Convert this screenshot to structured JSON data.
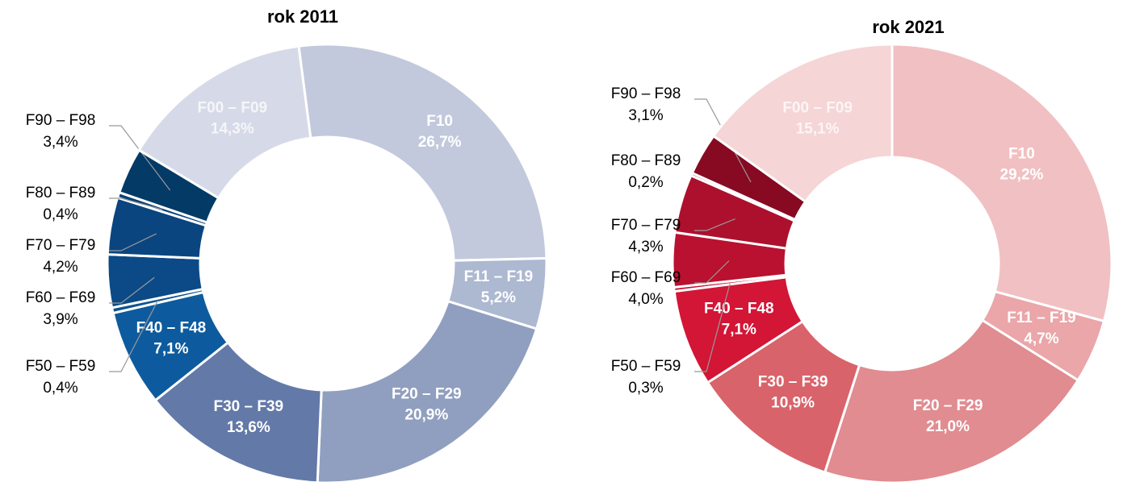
{
  "chart_data": [
    {
      "type": "pie",
      "title": "rok 2011",
      "categories": [
        "F10",
        "F11 – F19",
        "F20 – F29",
        "F30 – F39",
        "F40 – F48",
        "F50 – F59",
        "F60 – F69",
        "F70 – F79",
        "F80 – F89",
        "F90 – F98",
        "F00 – F09"
      ],
      "values": [
        26.7,
        5.2,
        20.9,
        13.6,
        7.1,
        0.4,
        3.9,
        4.2,
        0.4,
        3.4,
        14.3
      ],
      "value_labels": [
        "26,7%",
        "5,2%",
        "20,9%",
        "13,6%",
        "7,1%",
        "0,4%",
        "3,9%",
        "4,2%",
        "0,4%",
        "3,4%",
        "14,3%"
      ],
      "colors": [
        "#c2c9dc",
        "#adb8d1",
        "#909fbf",
        "#6379a8",
        "#0d5b9e",
        "#0e5391",
        "#0b4a86",
        "#0a4580",
        "#08417a",
        "#043a66",
        "#d6dae8"
      ]
    },
    {
      "type": "pie",
      "title": "rok 2021",
      "categories": [
        "F10",
        "F11 – F19",
        "F20 – F29",
        "F30 – F39",
        "F40 – F48",
        "F50 – F59",
        "F60 – F69",
        "F70 – F79",
        "F80 – F89",
        "F90 – F98",
        "F00 – F09"
      ],
      "values": [
        29.2,
        4.7,
        21.0,
        10.9,
        7.1,
        0.3,
        4.0,
        4.3,
        0.2,
        3.1,
        15.1
      ],
      "value_labels": [
        "29,2%",
        "4,7%",
        "21,0%",
        "10,9%",
        "7,1%",
        "0,3%",
        "4,0%",
        "4,3%",
        "0,2%",
        "3,1%",
        "15,1%"
      ],
      "colors": [
        "#f1c0c2",
        "#eaa6a9",
        "#e08c90",
        "#d9636a",
        "#d31536",
        "#c81434",
        "#b9112f",
        "#ad102d",
        "#9c0e28",
        "#870a22",
        "#f5d5d6"
      ]
    }
  ]
}
